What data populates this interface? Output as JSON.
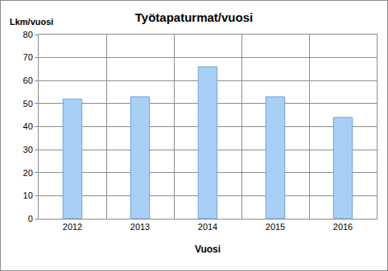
{
  "chart_data": {
    "type": "bar",
    "title": "Työtapaturmat/vuosi",
    "xlabel": "Vuosi",
    "ylabel": "Lkm/vuosi",
    "categories": [
      "2012",
      "2013",
      "2014",
      "2015",
      "2016"
    ],
    "values": [
      52,
      53,
      66,
      53,
      44
    ],
    "color": "#a8cff5",
    "ylim": [
      0,
      80
    ],
    "yticks": [
      0,
      10,
      20,
      30,
      40,
      50,
      60,
      70,
      80
    ],
    "grid": true
  }
}
